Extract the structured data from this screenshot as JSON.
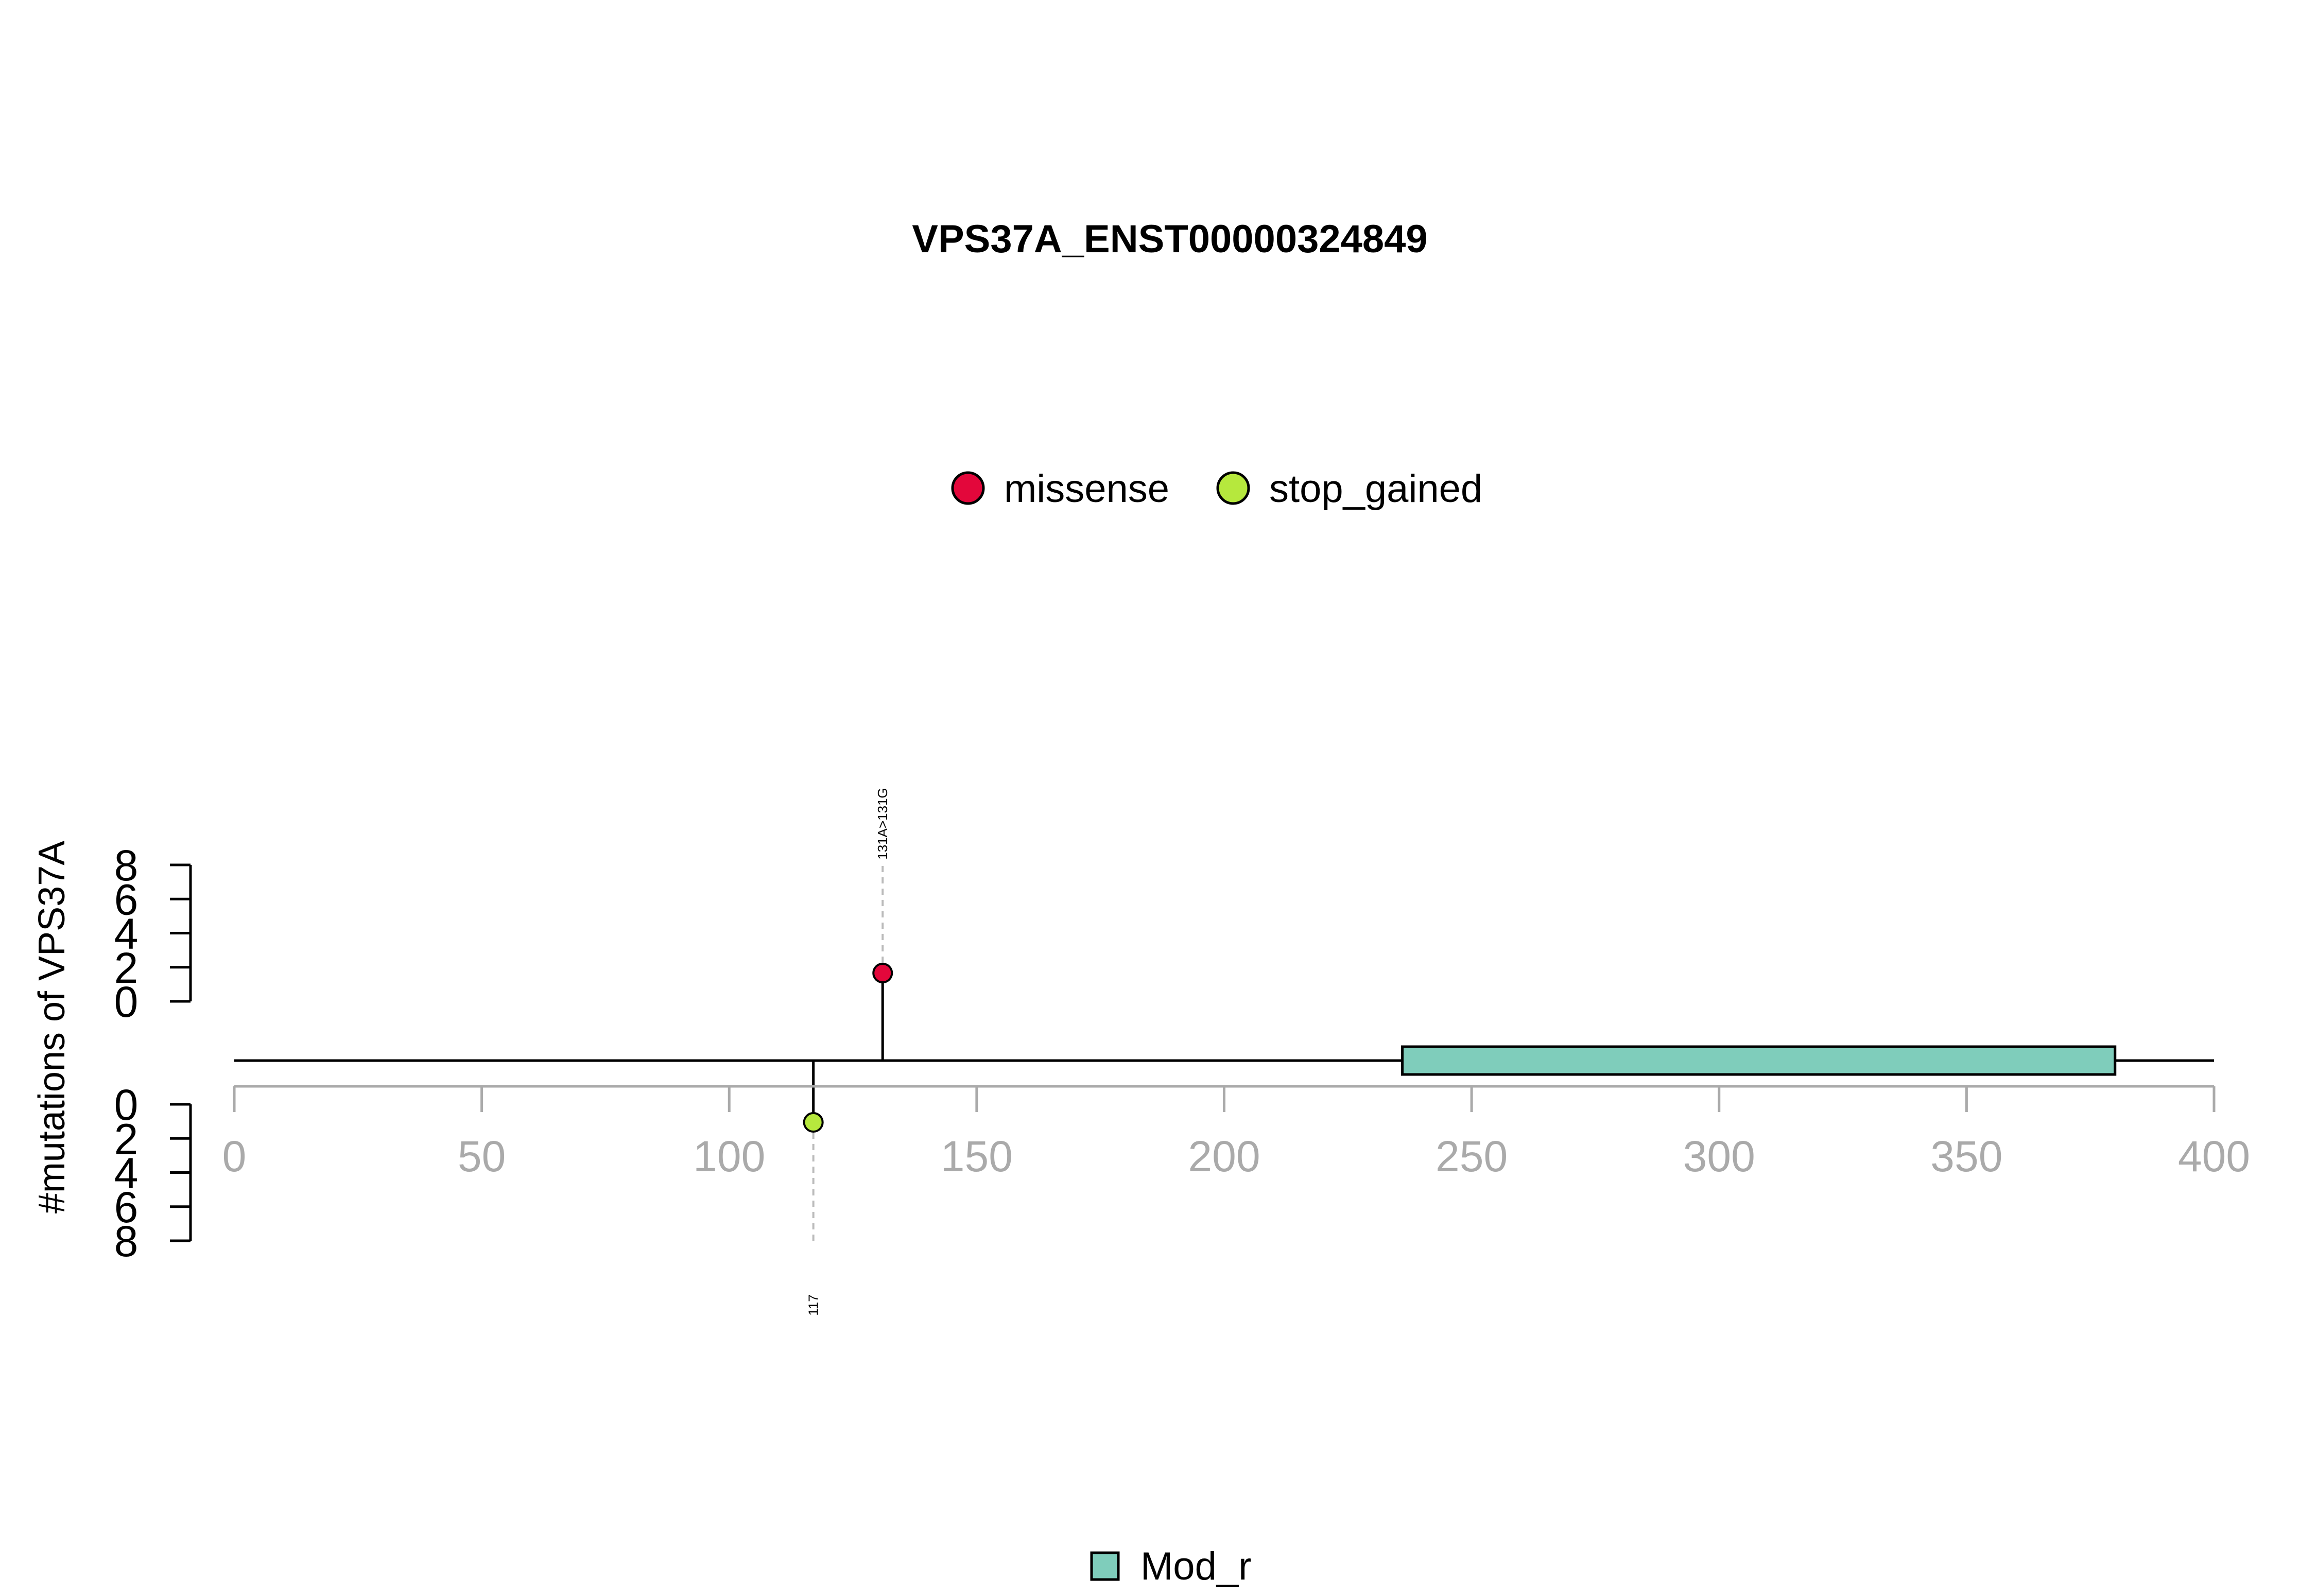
{
  "chart_data": {
    "type": "lollipop",
    "title": "VPS37A_ENST00000324849",
    "ylabel": "#mutations of VPS37A",
    "xlabel": "",
    "xlim": [
      0,
      400
    ],
    "x_ticks": [
      0,
      50,
      100,
      150,
      200,
      250,
      300,
      350,
      400
    ],
    "y_ticks": [
      0,
      2,
      4,
      6,
      8
    ],
    "ylim": [
      0,
      8
    ],
    "protein_length": 400,
    "legend_mutation_types": [
      {
        "name": "missense",
        "color": "#E3073B"
      },
      {
        "name": "stop_gained",
        "color": "#B6E83D"
      }
    ],
    "mutations": [
      {
        "position": 131,
        "count": 1,
        "type": "missense",
        "direction": "up",
        "label": "131A>131G"
      },
      {
        "position": 117,
        "count": 1,
        "type": "stop_gained",
        "direction": "down",
        "label": "117"
      }
    ],
    "domains": [
      {
        "name": "Mod_r",
        "start": 236,
        "end": 380,
        "color": "#7FCDBB"
      }
    ],
    "legend_domains": [
      {
        "name": "Mod_r",
        "color": "#7FCDBB"
      }
    ],
    "axis_color": "#AAAAAA",
    "grid": false,
    "legend_placement": "top-center"
  }
}
